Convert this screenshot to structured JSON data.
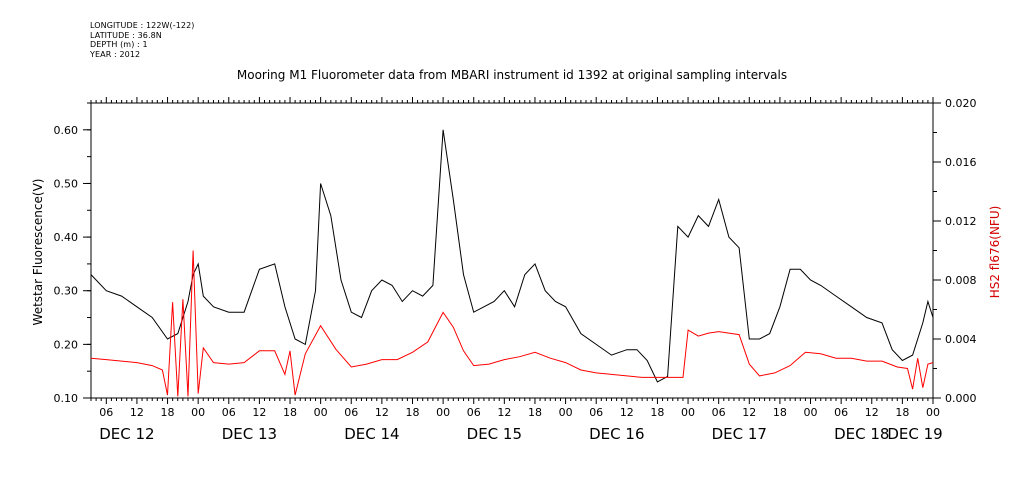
{
  "header": {
    "longitude": "LONGITUDE : 122W(-122)",
    "latitude": "LATITUDE : 36.8N",
    "depth": "DEPTH (m) : 1",
    "year": "YEAR : 2012"
  },
  "chart_data": {
    "type": "line",
    "title": "Mooring M1 Fluorometer data from MBARI instrument id 1392 at original sampling intervals",
    "ylabel": "Wetstar Fluorescence(V)",
    "y2label": "HS2 fl676(NFU)",
    "ylim": [
      0.1,
      0.65
    ],
    "y2lim": [
      0.0,
      0.02
    ],
    "y_ticks": [
      0.1,
      0.2,
      0.3,
      0.4,
      0.5,
      0.6
    ],
    "y_tick_labels": [
      "0.10",
      "0.20",
      "0.30",
      "0.40",
      "0.50",
      "0.60"
    ],
    "y2_ticks": [
      0.0,
      0.004,
      0.008,
      0.012,
      0.016,
      0.02
    ],
    "y2_tick_labels": [
      "0.000",
      "0.004",
      "0.008",
      "0.012",
      "0.016",
      "0.020"
    ],
    "xlim_hours": [
      [
        3,
        12
      ],
      [
        24,
        12
      ],
      [
        24,
        7
      ],
      [
        24,
        8
      ],
      [
        24,
        7
      ],
      [
        24,
        7
      ],
      [
        24,
        7
      ]
    ],
    "x_hour_labels": [
      "06",
      "12",
      "18",
      "00",
      "06",
      "12",
      "18",
      "00",
      "06",
      "12",
      "18",
      "00",
      "06",
      "12",
      "18",
      "00",
      "06",
      "12",
      "18",
      "00",
      "06",
      "12",
      "18",
      "00",
      "06",
      "12",
      "18",
      "00",
      "06",
      "12",
      "18",
      "00"
    ],
    "x_day_labels": [
      "DEC 12",
      "DEC 13",
      "DEC 14",
      "DEC 15",
      "DEC 16",
      "DEC 17",
      "DEC 18",
      "DEC 19"
    ],
    "x_start": "2012-12-12T03:00",
    "x_end": "2012-12-19T00:00",
    "series": [
      {
        "axis": "left",
        "color": "#000000",
        "x": [
          "2012-12-12T03:00",
          "2012-12-12T06:00",
          "2012-12-12T09:00",
          "2012-12-12T12:00",
          "2012-12-12T15:00",
          "2012-12-12T18:00",
          "2012-12-12T20:00",
          "2012-12-12T22:00",
          "2012-12-12T23:00",
          "2012-12-13T00:00",
          "2012-12-13T01:00",
          "2012-12-13T03:00",
          "2012-12-13T06:00",
          "2012-12-13T09:00",
          "2012-12-13T12:00",
          "2012-12-13T15:00",
          "2012-12-13T17:00",
          "2012-12-13T19:00",
          "2012-12-13T21:00",
          "2012-12-13T23:00",
          "2012-12-14T00:00",
          "2012-12-14T02:00",
          "2012-12-14T04:00",
          "2012-12-14T06:00",
          "2012-12-14T08:00",
          "2012-12-14T10:00",
          "2012-12-14T12:00",
          "2012-12-14T14:00",
          "2012-12-14T16:00",
          "2012-12-14T18:00",
          "2012-12-14T20:00",
          "2012-12-14T22:00",
          "2012-12-15T00:00",
          "2012-12-15T02:00",
          "2012-12-15T04:00",
          "2012-12-15T06:00",
          "2012-12-15T08:00",
          "2012-12-15T10:00",
          "2012-12-15T12:00",
          "2012-12-15T14:00",
          "2012-12-15T16:00",
          "2012-12-15T18:00",
          "2012-12-15T20:00",
          "2012-12-15T22:00",
          "2012-12-16T00:00",
          "2012-12-16T03:00",
          "2012-12-16T06:00",
          "2012-12-16T09:00",
          "2012-12-16T12:00",
          "2012-12-16T14:00",
          "2012-12-16T16:00",
          "2012-12-16T18:00",
          "2012-12-16T20:00",
          "2012-12-16T22:00",
          "2012-12-17T00:00",
          "2012-12-17T02:00",
          "2012-12-17T04:00",
          "2012-12-17T06:00",
          "2012-12-17T08:00",
          "2012-12-17T10:00",
          "2012-12-17T12:00",
          "2012-12-17T14:00",
          "2012-12-17T16:00",
          "2012-12-17T18:00",
          "2012-12-17T20:00",
          "2012-12-17T22:00",
          "2012-12-18T00:00",
          "2012-12-18T02:00",
          "2012-12-18T05:00",
          "2012-12-18T08:00",
          "2012-12-18T11:00",
          "2012-12-18T14:00",
          "2012-12-18T16:00",
          "2012-12-18T18:00",
          "2012-12-18T20:00",
          "2012-12-18T22:00",
          "2012-12-18T23:00",
          "2012-12-19T00:00"
        ],
        "values": [
          0.33,
          0.3,
          0.29,
          0.27,
          0.25,
          0.21,
          0.22,
          0.28,
          0.33,
          0.35,
          0.29,
          0.27,
          0.26,
          0.26,
          0.34,
          0.35,
          0.27,
          0.21,
          0.2,
          0.3,
          0.5,
          0.44,
          0.32,
          0.26,
          0.25,
          0.3,
          0.32,
          0.31,
          0.28,
          0.3,
          0.29,
          0.31,
          0.6,
          0.47,
          0.33,
          0.26,
          0.27,
          0.28,
          0.3,
          0.27,
          0.33,
          0.35,
          0.3,
          0.28,
          0.27,
          0.22,
          0.2,
          0.18,
          0.19,
          0.19,
          0.17,
          0.13,
          0.14,
          0.42,
          0.4,
          0.44,
          0.42,
          0.47,
          0.4,
          0.38,
          0.21,
          0.21,
          0.22,
          0.27,
          0.34,
          0.34,
          0.32,
          0.31,
          0.29,
          0.27,
          0.25,
          0.24,
          0.19,
          0.17,
          0.18,
          0.24,
          0.28,
          0.25
        ]
      },
      {
        "axis": "right",
        "color": "#ff0000",
        "x": [
          "2012-12-12T03:00",
          "2012-12-12T06:00",
          "2012-12-12T09:00",
          "2012-12-12T12:00",
          "2012-12-12T15:00",
          "2012-12-12T17:00",
          "2012-12-12T18:00",
          "2012-12-12T19:00",
          "2012-12-12T20:00",
          "2012-12-12T21:00",
          "2012-12-12T22:00",
          "2012-12-12T23:00",
          "2012-12-13T00:00",
          "2012-12-13T01:00",
          "2012-12-13T03:00",
          "2012-12-13T06:00",
          "2012-12-13T09:00",
          "2012-12-13T12:00",
          "2012-12-13T15:00",
          "2012-12-13T17:00",
          "2012-12-13T18:00",
          "2012-12-13T19:00",
          "2012-12-13T21:00",
          "2012-12-14T00:00",
          "2012-12-14T03:00",
          "2012-12-14T06:00",
          "2012-12-14T09:00",
          "2012-12-14T12:00",
          "2012-12-14T15:00",
          "2012-12-14T18:00",
          "2012-12-14T21:00",
          "2012-12-15T00:00",
          "2012-12-15T02:00",
          "2012-12-15T04:00",
          "2012-12-15T06:00",
          "2012-12-15T09:00",
          "2012-12-15T12:00",
          "2012-12-15T15:00",
          "2012-12-15T18:00",
          "2012-12-15T21:00",
          "2012-12-16T00:00",
          "2012-12-16T03:00",
          "2012-12-16T06:00",
          "2012-12-16T09:00",
          "2012-12-16T12:00",
          "2012-12-16T15:00",
          "2012-12-16T18:00",
          "2012-12-16T21:00",
          "2012-12-16T23:00",
          "2012-12-17T00:00",
          "2012-12-17T02:00",
          "2012-12-17T04:00",
          "2012-12-17T06:00",
          "2012-12-17T08:00",
          "2012-12-17T10:00",
          "2012-12-17T12:00",
          "2012-12-17T14:00",
          "2012-12-17T17:00",
          "2012-12-17T20:00",
          "2012-12-17T23:00",
          "2012-12-18T02:00",
          "2012-12-18T05:00",
          "2012-12-18T08:00",
          "2012-12-18T11:00",
          "2012-12-18T14:00",
          "2012-12-18T17:00",
          "2012-12-18T19:00",
          "2012-12-18T20:00",
          "2012-12-18T21:00",
          "2012-12-18T22:00",
          "2012-12-18T23:00",
          "2012-12-19T00:00"
        ],
        "values": [
          0.0027,
          0.0026,
          0.0025,
          0.0024,
          0.0022,
          0.0019,
          0.0002,
          0.0065,
          0.0001,
          0.0067,
          0.0001,
          0.01,
          0.0003,
          0.0034,
          0.0024,
          0.0023,
          0.0024,
          0.0032,
          0.0032,
          0.0016,
          0.0032,
          0.0002,
          0.003,
          0.0049,
          0.0033,
          0.0021,
          0.0023,
          0.0026,
          0.0026,
          0.0031,
          0.0038,
          0.0058,
          0.0048,
          0.0032,
          0.0022,
          0.0023,
          0.0026,
          0.0028,
          0.0031,
          0.0027,
          0.0024,
          0.0019,
          0.0017,
          0.0016,
          0.0015,
          0.0014,
          0.0014,
          0.0014,
          0.0014,
          0.0046,
          0.0042,
          0.0044,
          0.0045,
          0.0044,
          0.0043,
          0.0023,
          0.0015,
          0.0017,
          0.0022,
          0.0031,
          0.003,
          0.0027,
          0.0027,
          0.0025,
          0.0025,
          0.0021,
          0.002,
          0.0006,
          0.0027,
          0.0007,
          0.0023,
          0.0024
        ]
      }
    ]
  }
}
